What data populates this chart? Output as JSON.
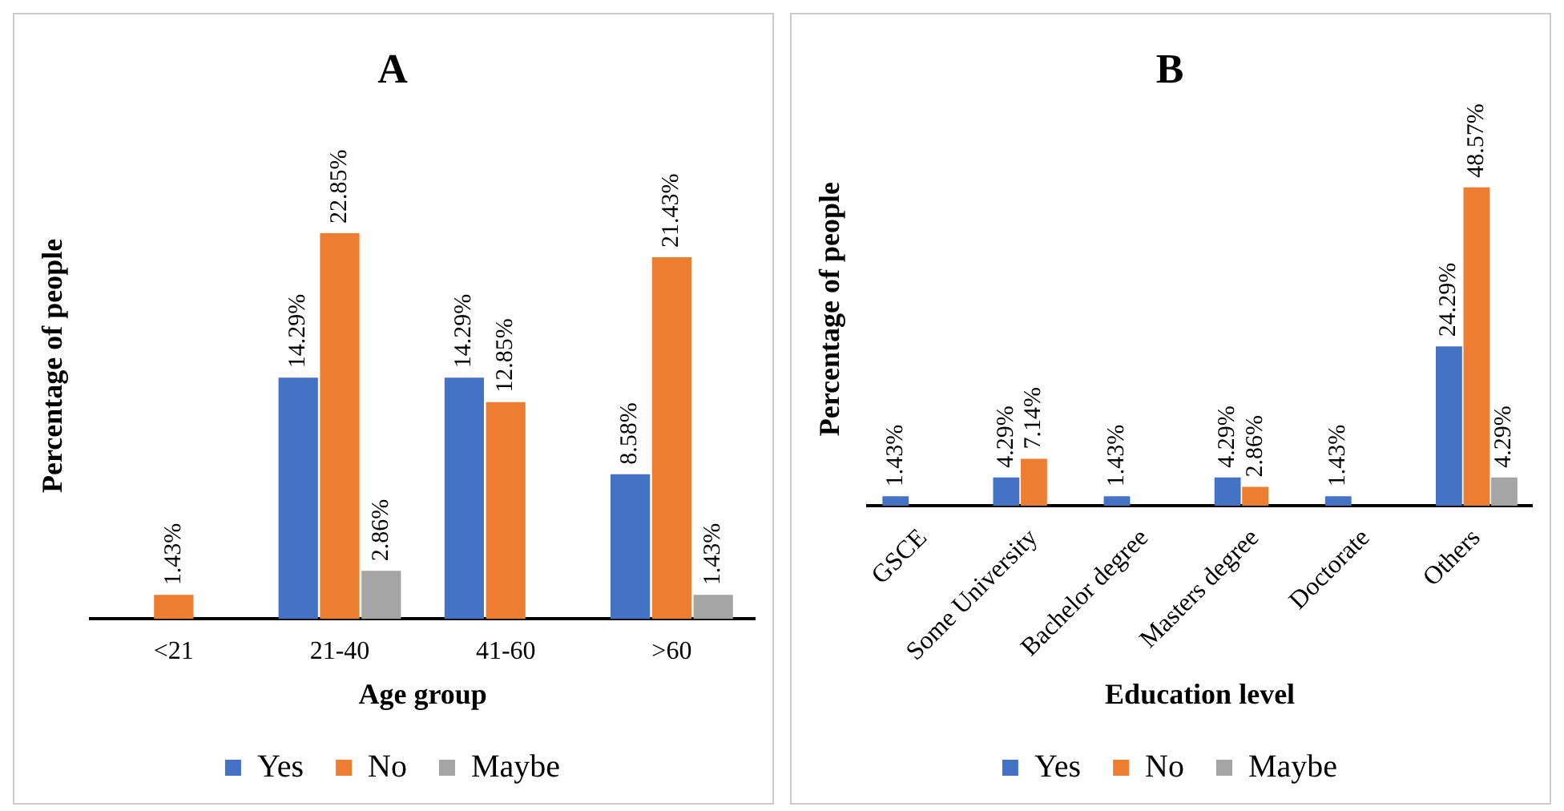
{
  "chart_data": [
    {
      "type": "bar",
      "title": "A",
      "xlabel": "Age group",
      "ylabel": "Percentage of people",
      "categories": [
        "<21",
        "21-40",
        "41-60",
        ">60"
      ],
      "legend": "bottom",
      "grid": false,
      "series": [
        {
          "name": "Yes",
          "color": "#4472c4",
          "values": [
            null,
            14.29,
            14.29,
            8.58
          ],
          "value_labels": [
            null,
            "14.29%",
            "14.29%",
            "8.58%"
          ]
        },
        {
          "name": "No",
          "color": "#ed7d31",
          "values": [
            1.43,
            22.85,
            12.85,
            21.43
          ],
          "value_labels": [
            "1.43%",
            "22.85%",
            "12.85%",
            "21.43%"
          ]
        },
        {
          "name": "Maybe",
          "color": "#a5a5a5",
          "values": [
            null,
            2.86,
            null,
            1.43
          ],
          "value_labels": [
            null,
            "2.86%",
            null,
            "1.43%"
          ]
        }
      ]
    },
    {
      "type": "bar",
      "title": "B",
      "xlabel": "Education level",
      "ylabel": "Percentage of people",
      "categories": [
        "GSCE",
        "Some University",
        "Bachelor degree",
        "Masters degree",
        "Doctorate",
        "Others"
      ],
      "legend": "bottom",
      "grid": false,
      "series": [
        {
          "name": "Yes",
          "color": "#4472c4",
          "values": [
            1.43,
            4.29,
            1.43,
            4.29,
            1.43,
            24.29
          ],
          "value_labels": [
            "1.43%",
            "4.29%",
            "1.43%",
            "4.29%",
            "1.43%",
            "24.29%"
          ]
        },
        {
          "name": "No",
          "color": "#ed7d31",
          "values": [
            null,
            7.14,
            null,
            2.86,
            null,
            48.57
          ],
          "value_labels": [
            null,
            "7.14%",
            null,
            "2.86%",
            null,
            "48.57%"
          ]
        },
        {
          "name": "Maybe",
          "color": "#a5a5a5",
          "values": [
            null,
            null,
            null,
            null,
            null,
            4.29
          ],
          "value_labels": [
            null,
            null,
            null,
            null,
            null,
            "4.29%"
          ]
        }
      ]
    }
  ]
}
